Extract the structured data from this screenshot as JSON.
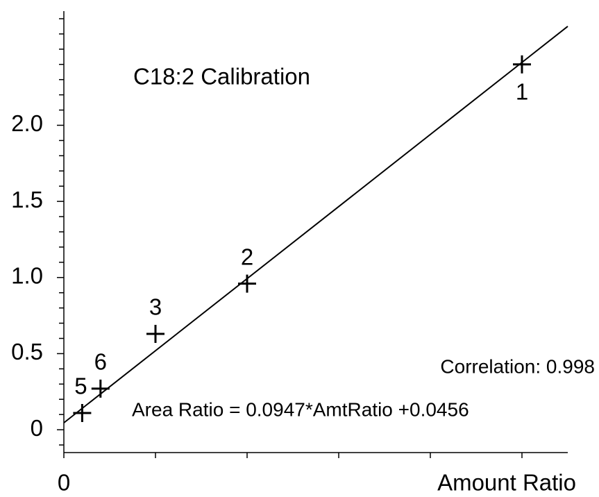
{
  "chart_data": {
    "type": "scatter",
    "title": "C18:2 Calibration",
    "x_label": "Amount Ratio",
    "annotations": [
      "Correlation: 0.998",
      "Area Ratio = 0.0947*AmtRatio +0.0456"
    ],
    "fit": {
      "slope": 0.0947,
      "intercept": 0.0456
    },
    "xlim": [
      0,
      27.5
    ],
    "ylim": [
      -0.15,
      2.75
    ],
    "xticks": [
      0
    ],
    "xminor_ticks": [
      5,
      10,
      15,
      20,
      25
    ],
    "yticks": [
      0,
      0.5,
      {
        "value": 1,
        "label": "1.0"
      },
      1.5,
      {
        "value": 2,
        "label": "2.0"
      }
    ],
    "yminor_ticks": [
      -0.1,
      0.1,
      0.2,
      0.3,
      0.4,
      0.6,
      0.7,
      0.8,
      0.9,
      1.1,
      1.2,
      1.3,
      1.4,
      1.6,
      1.7,
      1.8,
      1.9,
      2.1,
      2.2,
      2.3,
      2.4,
      2.5,
      2.6,
      2.7
    ],
    "series": [
      {
        "name": "C18:2",
        "color": "#000000",
        "x": [
          25,
          10,
          5,
          1,
          2
        ],
        "values": [
          2.4,
          0.96,
          0.63,
          0.11,
          0.27
        ],
        "point_labels": [
          "1",
          "2",
          "3",
          "5",
          "6"
        ],
        "label_positions": [
          "below",
          "above",
          "above",
          "left",
          "above"
        ]
      }
    ]
  }
}
